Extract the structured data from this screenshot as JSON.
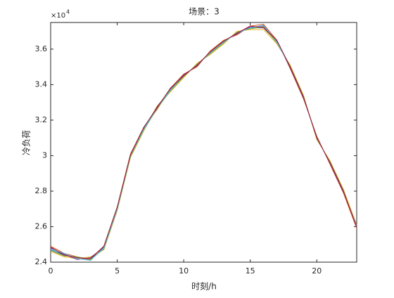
{
  "chart_data": {
    "type": "line",
    "title": "场景：3",
    "x_label": "时刻/h",
    "y_label": "冷负荷",
    "y_multiplier": {
      "base": "×10",
      "exponent": "4"
    },
    "x": [
      0,
      1,
      2,
      3,
      4,
      5,
      6,
      7,
      8,
      9,
      10,
      11,
      12,
      13,
      14,
      15,
      16,
      17,
      18,
      19,
      20,
      21,
      22,
      23
    ],
    "xlim": [
      0,
      23
    ],
    "xticks": [
      0,
      5,
      10,
      15,
      20
    ],
    "ylim": [
      24000,
      37500
    ],
    "yticks": [
      {
        "value": 24000,
        "label": "2.4"
      },
      {
        "value": 26000,
        "label": "2.6"
      },
      {
        "value": 28000,
        "label": "2.8"
      },
      {
        "value": 30000,
        "label": "3"
      },
      {
        "value": 32000,
        "label": "3.2"
      },
      {
        "value": 34000,
        "label": "3.4"
      },
      {
        "value": 36000,
        "label": "3.6"
      }
    ],
    "series": [
      {
        "color": "#0072BD",
        "values": [
          24700,
          24400,
          24250,
          24200,
          24800,
          27000,
          30000,
          31500,
          32700,
          33700,
          34500,
          35100,
          35800,
          36400,
          36900,
          37200,
          37200,
          36400,
          35000,
          33300,
          31000,
          29600,
          28000,
          26000
        ]
      },
      {
        "color": "#D95319",
        "values": [
          24900,
          24500,
          24300,
          24100,
          24900,
          27100,
          30100,
          31600,
          32600,
          33800,
          34600,
          35000,
          35900,
          36500,
          36800,
          37300,
          37400,
          36500,
          34900,
          33200,
          31100,
          29500,
          27900,
          25900
        ]
      },
      {
        "color": "#EDB120",
        "values": [
          24600,
          24300,
          24200,
          24300,
          24700,
          26900,
          29900,
          31400,
          32800,
          33600,
          34400,
          35200,
          35700,
          36300,
          37000,
          37100,
          37100,
          36300,
          35100,
          33400,
          30900,
          29700,
          28100,
          26100
        ]
      },
      {
        "color": "#7E2F8E",
        "values": [
          24800,
          24450,
          24150,
          24250,
          24850,
          27050,
          30050,
          31550,
          32750,
          33750,
          34550,
          35050,
          35850,
          36450,
          36850,
          37250,
          37300,
          36450,
          34950,
          33250,
          31050,
          29550,
          27950,
          26050
        ]
      },
      {
        "color": "#77AC30",
        "values": [
          24650,
          24350,
          24300,
          24150,
          24750,
          26950,
          29950,
          31450,
          32650,
          33650,
          34450,
          35150,
          35750,
          36350,
          36950,
          37150,
          37250,
          36350,
          35050,
          33350,
          30950,
          29650,
          28050,
          25950
        ]
      },
      {
        "color": "#4DBEEE",
        "values": [
          24750,
          24500,
          24200,
          24100,
          24800,
          27000,
          30000,
          31500,
          32700,
          33700,
          34500,
          35100,
          35800,
          36400,
          36900,
          37200,
          37350,
          36400,
          35000,
          33300,
          31000,
          29600,
          28000,
          26000
        ]
      },
      {
        "color": "#A2142F",
        "values": [
          24850,
          24400,
          24250,
          24200,
          24900,
          27100,
          30050,
          31600,
          32700,
          33800,
          34500,
          35100,
          35850,
          36450,
          36900,
          37300,
          37200,
          36500,
          35000,
          33300,
          31000,
          29600,
          28000,
          25950
        ]
      }
    ]
  }
}
